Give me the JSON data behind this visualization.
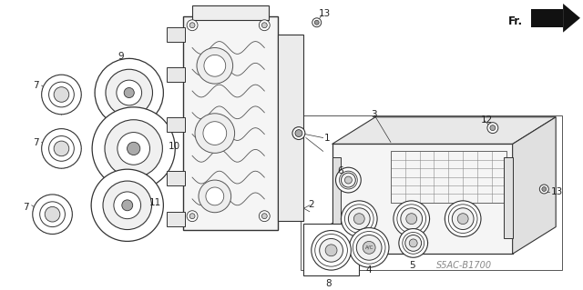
{
  "bg_color": "#ffffff",
  "line_color": "#333333",
  "watermark": "S5AC-B1700",
  "figsize": [
    6.4,
    3.19
  ],
  "dpi": 100
}
